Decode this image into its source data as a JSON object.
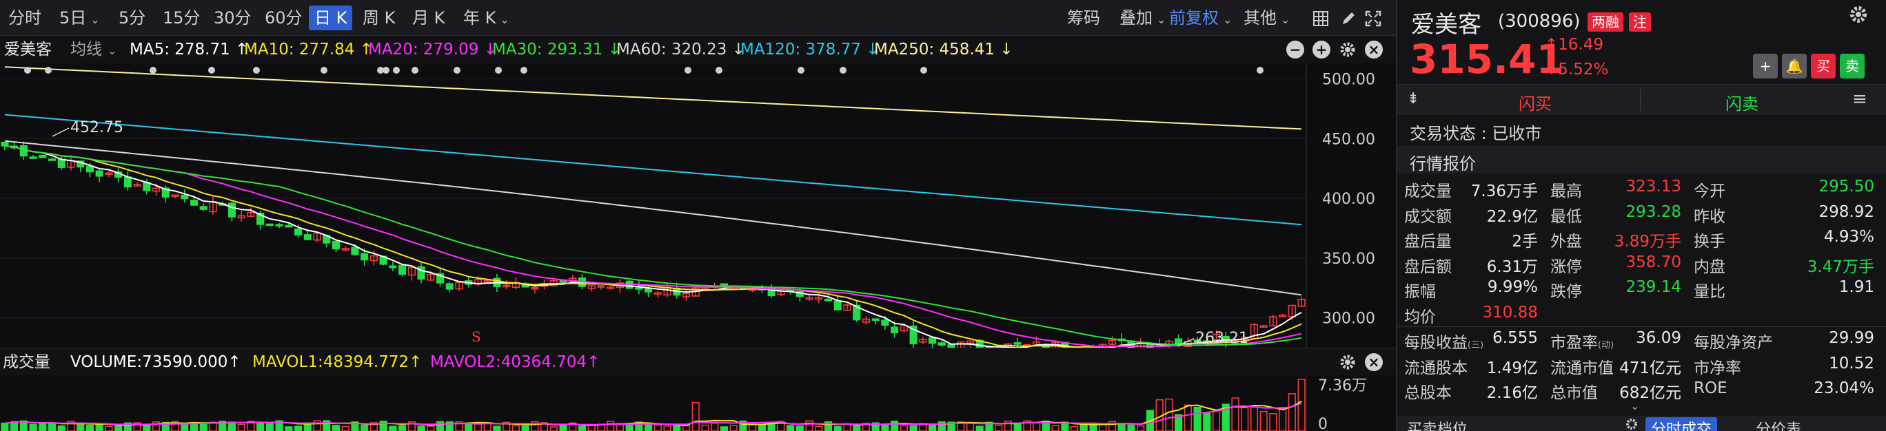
{
  "toolbar": {
    "periods": [
      "分时",
      "5日",
      "5分",
      "15分",
      "30分",
      "60分",
      "日 K",
      "周 K",
      "月 K",
      "年 K"
    ],
    "active_period": "日 K",
    "right_items": [
      "筹码",
      "叠加",
      "前复权",
      "其他"
    ]
  },
  "ma_legend": {
    "stock_name": "爱美客",
    "indicator_select": "均线",
    "items": [
      {
        "label": "MA5: 278.71",
        "arrow": "↑",
        "color": "#ffffff"
      },
      {
        "label": "MA10: 277.84",
        "arrow": "↑",
        "color": "#f5e51a"
      },
      {
        "label": "MA20: 279.09",
        "arrow": "↓",
        "color": "#ff2cff"
      },
      {
        "label": "MA30: 293.31",
        "arrow": "↓",
        "color": "#33e033"
      },
      {
        "label": "MA60: 320.23",
        "arrow": "↓",
        "color": "#d8d8d8"
      },
      {
        "label": "MA120: 378.77",
        "arrow": "↓",
        "color": "#29c8e8"
      },
      {
        "label": "MA250: 458.41",
        "arrow": "↓",
        "color": "#f8f09a"
      }
    ]
  },
  "chart": {
    "y_ticks": [
      "500.00",
      "450.00",
      "400.00",
      "350.00",
      "300.00"
    ],
    "high_label": "452.75",
    "low_label": "263.21",
    "marker_s": "S",
    "ylim": [
      275,
      513
    ]
  },
  "volume": {
    "title": "成交量",
    "items": [
      {
        "label": "VOLUME:73590.000",
        "arrow": "↑",
        "color": "#ffffff"
      },
      {
        "label": "MAVOL1:48394.772",
        "arrow": "↑",
        "color": "#f5e51a"
      },
      {
        "label": "MAVOL2:40364.704",
        "arrow": "↑",
        "color": "#ff2cff"
      }
    ],
    "y_top": "7.36万",
    "y_bottom": "0"
  },
  "stock": {
    "name": "爱美客",
    "code": "(300896)",
    "badge1": "两融",
    "badge2": "注",
    "price": "315.41",
    "change": "16.49",
    "change_arrow": "↑",
    "change_pct": "+5.52%",
    "buy_btn": "买",
    "sell_btn": "卖",
    "flash_buy": "闪买",
    "flash_sell": "闪卖",
    "status": "交易状态 : 已收市",
    "section_title": "行情报价"
  },
  "quote": [
    [
      {
        "l": "成交量",
        "v": "7.36万手",
        "c": "white"
      },
      {
        "l": "最高",
        "v": "323.13",
        "c": "red"
      },
      {
        "l": "今开",
        "v": "295.50",
        "c": "green"
      }
    ],
    [
      {
        "l": "成交额",
        "v": "22.9亿",
        "c": "white"
      },
      {
        "l": "最低",
        "v": "293.28",
        "c": "green"
      },
      {
        "l": "昨收",
        "v": "298.92",
        "c": "white"
      }
    ],
    [
      {
        "l": "盘后量",
        "v": "2手",
        "c": "white"
      },
      {
        "l": "外盘",
        "v": "3.89万手",
        "c": "red"
      },
      {
        "l": "换手",
        "v": "4.93%",
        "c": "white"
      }
    ],
    [
      {
        "l": "盘后额",
        "v": "6.31万",
        "c": "white"
      },
      {
        "l": "涨停",
        "v": "358.70",
        "c": "red"
      },
      {
        "l": "内盘",
        "v": "3.47万手",
        "c": "green"
      }
    ],
    [
      {
        "l": "振幅",
        "v": "9.99%",
        "c": "white"
      },
      {
        "l": "跌停",
        "v": "239.14",
        "c": "green"
      },
      {
        "l": "量比",
        "v": "1.91",
        "c": "white"
      }
    ],
    [
      {
        "l": "均价",
        "v": "310.88",
        "c": "red"
      },
      {
        "l": "",
        "v": "",
        "c": "white"
      },
      {
        "l": "",
        "v": "",
        "c": "white"
      }
    ]
  ],
  "fundamentals": [
    [
      {
        "l": "每股收益",
        "sub": "(三)",
        "v": "6.555"
      },
      {
        "l": "市盈率",
        "sub": "(动)",
        "v": "36.09"
      },
      {
        "l": "每股净资产",
        "sub": "",
        "v": "29.99"
      }
    ],
    [
      {
        "l": "流通股本",
        "sub": "",
        "v": "1.49亿"
      },
      {
        "l": "流通市值",
        "sub": "",
        "v": "471亿元"
      },
      {
        "l": "市净率",
        "sub": "",
        "v": "10.52"
      }
    ],
    [
      {
        "l": "总股本",
        "sub": "",
        "v": "2.16亿"
      },
      {
        "l": "总市值",
        "sub": "",
        "v": "682亿元"
      },
      {
        "l": "ROE",
        "sub": "",
        "v": "23.04%"
      }
    ]
  ],
  "bottom_tabs": [
    "买卖档位",
    "分时成交",
    "分价表"
  ],
  "colors": {
    "up": "#ff3b3b",
    "down": "#22dd44",
    "active_tab": "#2f5fd0"
  }
}
